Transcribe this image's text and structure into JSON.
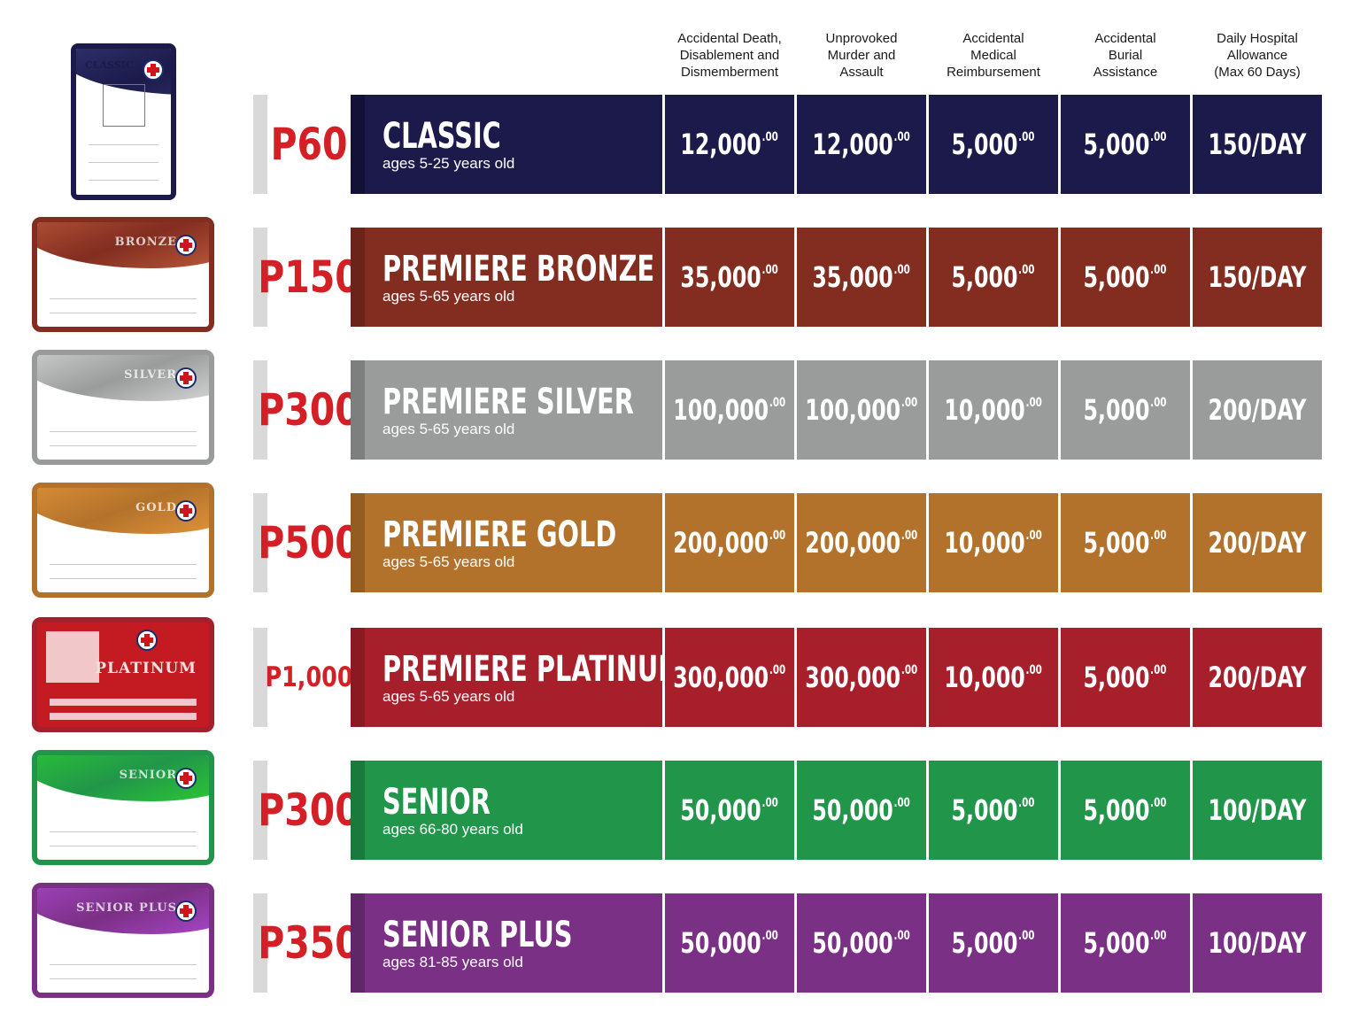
{
  "headers": [
    "Accidental Death,\nDisablement and\nDismemberment",
    "Unprovoked\nMurder and\nAssault",
    "Accidental\nMedical\nReimbursement",
    "Accidental\nBurial\nAssistance",
    "Daily Hospital\nAllowance\n(Max 60 Days)"
  ],
  "plans": [
    {
      "price": "P60",
      "name": "CLASSIC",
      "ages": "ages 5-25 years old",
      "color": "#1b1a4a",
      "dark": "#131236",
      "light": "#3a3a7a",
      "card_text": "CLASSIC",
      "values": [
        {
          "main": "12,000",
          "cents": ".00"
        },
        {
          "main": "12,000",
          "cents": ".00"
        },
        {
          "main": "5,000",
          "cents": ".00"
        },
        {
          "main": "5,000",
          "cents": ".00"
        },
        {
          "main": "150/DAY",
          "cents": ""
        }
      ]
    },
    {
      "price": "P150",
      "name": "PREMIERE BRONZE",
      "ages": "ages 5-65 years old",
      "color": "#822d20",
      "dark": "#6a2419",
      "light": "#c4603e",
      "card_text": "BRONZE",
      "values": [
        {
          "main": "35,000",
          "cents": ".00"
        },
        {
          "main": "35,000",
          "cents": ".00"
        },
        {
          "main": "5,000",
          "cents": ".00"
        },
        {
          "main": "5,000",
          "cents": ".00"
        },
        {
          "main": "150/DAY",
          "cents": ""
        }
      ]
    },
    {
      "price": "P300",
      "name": "PREMIERE SILVER",
      "ages": "ages 5-65 years old",
      "color": "#9a9c9c",
      "dark": "#7d7f7f",
      "light": "#e0e0e0",
      "card_text": "SILVER",
      "values": [
        {
          "main": "100,000",
          "cents": ".00"
        },
        {
          "main": "100,000",
          "cents": ".00"
        },
        {
          "main": "10,000",
          "cents": ".00"
        },
        {
          "main": "5,000",
          "cents": ".00"
        },
        {
          "main": "200/DAY",
          "cents": ""
        }
      ]
    },
    {
      "price": "P500",
      "name": "PREMIERE GOLD",
      "ages": "ages 5-65 years old",
      "color": "#b3722b",
      "dark": "#955c1f",
      "light": "#e89a3a",
      "card_text": "GOLD",
      "values": [
        {
          "main": "200,000",
          "cents": ".00"
        },
        {
          "main": "200,000",
          "cents": ".00"
        },
        {
          "main": "10,000",
          "cents": ".00"
        },
        {
          "main": "5,000",
          "cents": ".00"
        },
        {
          "main": "200/DAY",
          "cents": ""
        }
      ]
    },
    {
      "price": "P1,000",
      "name": "PREMIERE PLATINUM",
      "ages": "ages 5-65 years old",
      "color": "#a71f2a",
      "dark": "#8a1921",
      "light": "#d8333c",
      "card_text": "PLATINUM",
      "values": [
        {
          "main": "300,000",
          "cents": ".00"
        },
        {
          "main": "300,000",
          "cents": ".00"
        },
        {
          "main": "10,000",
          "cents": ".00"
        },
        {
          "main": "5,000",
          "cents": ".00"
        },
        {
          "main": "200/DAY",
          "cents": ""
        }
      ]
    },
    {
      "price": "P300",
      "name": "SENIOR",
      "ages": "ages 66-80 years old",
      "color": "#21964a",
      "dark": "#1a7a3c",
      "light": "#2ed12f",
      "card_text": "SENIOR",
      "values": [
        {
          "main": "50,000",
          "cents": ".00"
        },
        {
          "main": "50,000",
          "cents": ".00"
        },
        {
          "main": "5,000",
          "cents": ".00"
        },
        {
          "main": "5,000",
          "cents": ".00"
        },
        {
          "main": "100/DAY",
          "cents": ""
        }
      ]
    },
    {
      "price": "P350",
      "name": "SENIOR PLUS",
      "ages": "ages 81-85 years old",
      "color": "#7a3084",
      "dark": "#61256a",
      "light": "#b24ad6",
      "card_text": "SENIOR PLUS",
      "values": [
        {
          "main": "50,000",
          "cents": ".00"
        },
        {
          "main": "50,000",
          "cents": ".00"
        },
        {
          "main": "5,000",
          "cents": ".00"
        },
        {
          "main": "5,000",
          "cents": ".00"
        },
        {
          "main": "100/DAY",
          "cents": ""
        }
      ]
    }
  ]
}
